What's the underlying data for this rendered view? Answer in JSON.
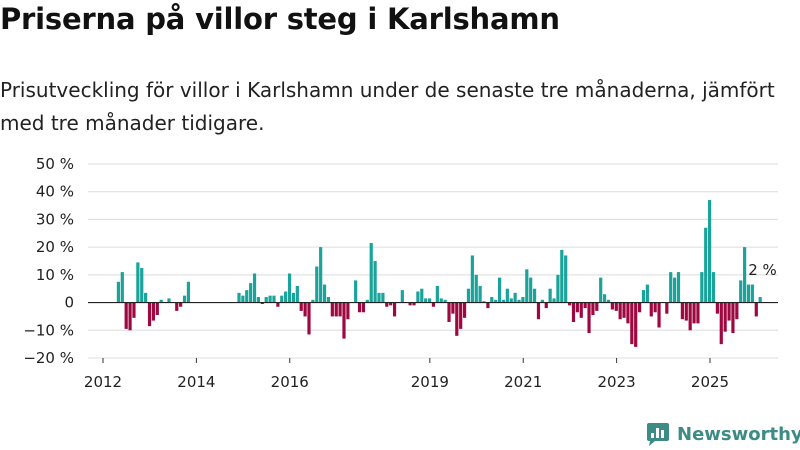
{
  "title": "Priserna på villor steg i Karlshamn",
  "subtitle": "Prisutveckling för villor i Karlshamn under de senaste tre månaderna, jämfört med tre månader tidigare.",
  "brand": {
    "name": "Newsworthy",
    "color": "#3d8b86",
    "icon": "newsworthy-logo-icon"
  },
  "colors": {
    "positive": "#1aa39a",
    "negative": "#9e0840",
    "grid": "#dcdcdc",
    "zero": "#222222"
  },
  "chart_data": {
    "type": "bar",
    "title": "Priserna på villor steg i Karlshamn",
    "ylabel": "",
    "xlabel": "",
    "ylim": [
      -20,
      50
    ],
    "y_ticks": [
      50,
      40,
      30,
      20,
      10,
      0,
      -10,
      -20
    ],
    "y_tick_labels": [
      "50 %",
      "40 %",
      "30 %",
      "20 %",
      "10 %",
      "0",
      "−10 %",
      "−20 %"
    ],
    "x_ticks": [
      2012,
      2014,
      2016,
      2019,
      2021,
      2023,
      2025
    ],
    "x_tick_labels": [
      "2012",
      "2014",
      "2016",
      "2019",
      "2021",
      "2023",
      "2025"
    ],
    "x_start": 2012.33,
    "step_years": 0.0833,
    "values": [
      7.5,
      11,
      -9.5,
      -10,
      -5.5,
      14.5,
      12.5,
      3.5,
      -8.5,
      -6.5,
      -4.5,
      1,
      0,
      1.5,
      0,
      -3,
      -1.5,
      2.5,
      7.5,
      0,
      0,
      0,
      0,
      0,
      0,
      0,
      0,
      0,
      0,
      0,
      0,
      3.5,
      2.5,
      4.5,
      7,
      10.5,
      2,
      -0.5,
      2,
      2.5,
      2.5,
      -1.5,
      2.5,
      4,
      10.5,
      3.5,
      6,
      -3,
      -5,
      -11.5,
      1,
      13,
      20,
      6.5,
      2,
      -5,
      -5,
      -5,
      -13,
      -6,
      0,
      8,
      -3.5,
      -3.5,
      1,
      21.5,
      15,
      3.5,
      3.5,
      -1.5,
      -1,
      -5,
      0,
      4.5,
      0,
      -1,
      -1,
      4,
      5,
      1.5,
      1.5,
      -1.5,
      6,
      1.5,
      1,
      -7,
      -4,
      -12,
      -9.5,
      -5.5,
      5,
      17,
      10,
      6,
      0.5,
      -2,
      2,
      1,
      9,
      1,
      5,
      1.5,
      3.5,
      1,
      2,
      12,
      9,
      5,
      -6,
      1,
      -2,
      5,
      1.5,
      10,
      19,
      17,
      -1,
      -7,
      -3.5,
      -5.5,
      -2,
      -11,
      -4.5,
      -3,
      9,
      3,
      1,
      -2.5,
      -3,
      -6,
      -5.5,
      -7.5,
      -15,
      -16,
      -3.5,
      4.5,
      6.5,
      -5,
      -3.5,
      -9,
      0,
      -4,
      11,
      9,
      11,
      -6,
      -6.5,
      -10,
      -7.5,
      -7.5,
      11,
      27,
      37,
      11,
      -4,
      -15,
      -10.5,
      -6.5,
      -11,
      -6,
      8,
      20,
      6.5,
      6.5,
      -5,
      2
    ],
    "annotation": {
      "label": "2 %",
      "value": 2
    }
  }
}
